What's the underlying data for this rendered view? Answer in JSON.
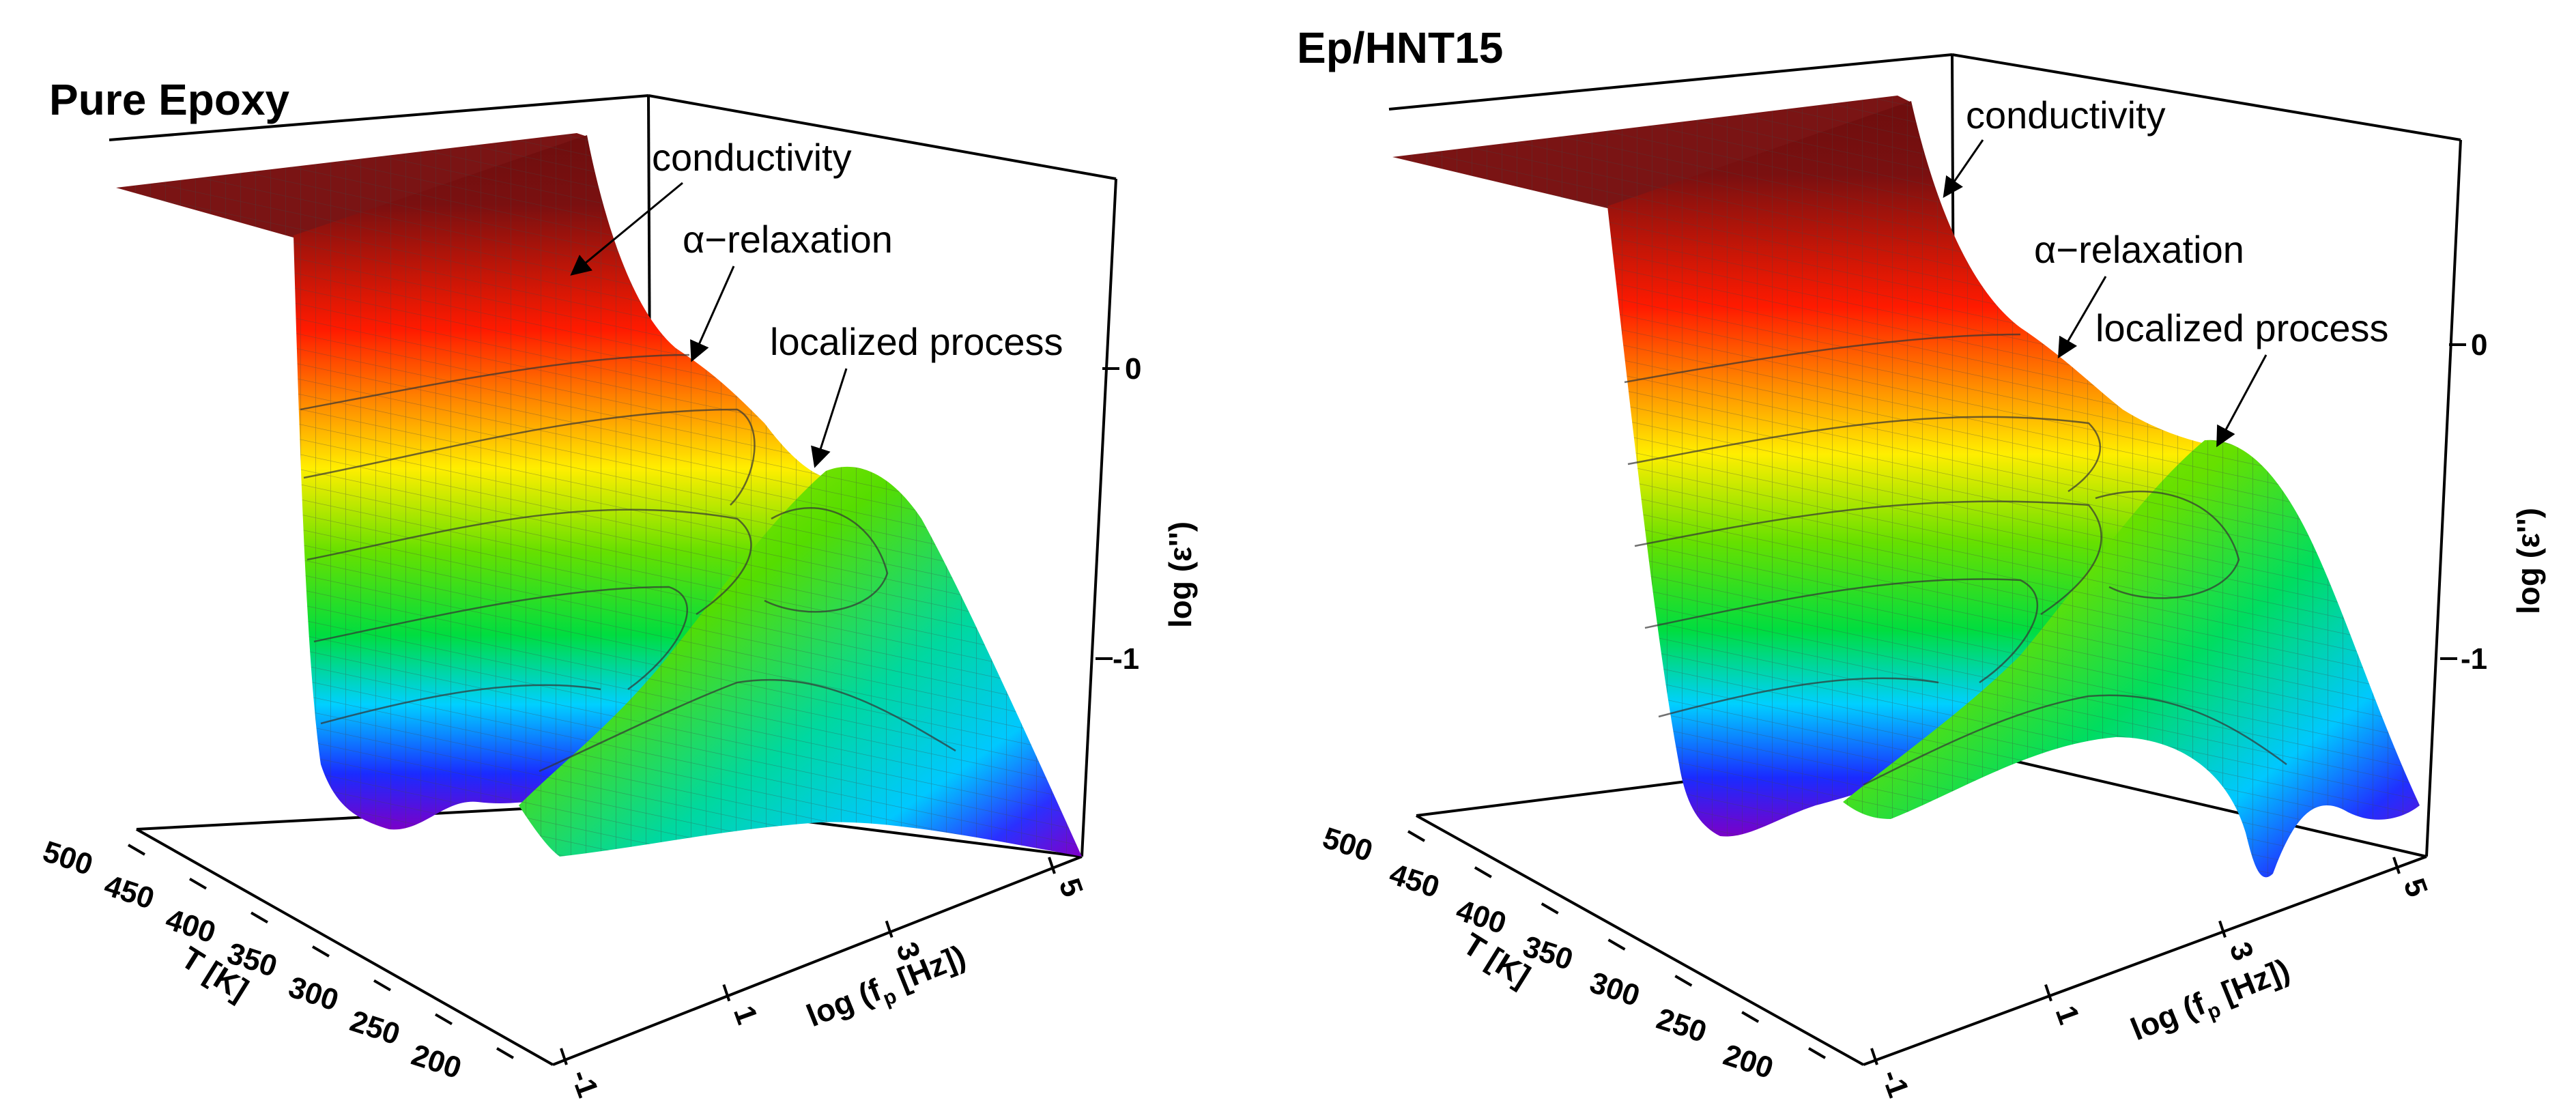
{
  "chart_data": [
    {
      "type": "surface3d",
      "title": "Pure Epoxy",
      "xlabel_prefix": "log (f",
      "xlabel_sub": "p",
      "xlabel_suffix": " [Hz])",
      "ylabel": "T [K]",
      "zlabel": "log (ε'')",
      "x_ticks": [
        "-1",
        "1",
        "3",
        "5"
      ],
      "y_ticks": [
        "200",
        "250",
        "300",
        "350",
        "400",
        "450",
        "500"
      ],
      "z_ticks": [
        "0",
        "-1"
      ],
      "annotations": [
        "conductivity",
        "α−relaxation",
        "localized process"
      ]
    },
    {
      "type": "surface3d",
      "title": "Ep/HNT15",
      "xlabel_prefix": "log (f",
      "xlabel_sub": "p",
      "xlabel_suffix": " [Hz])",
      "ylabel": "T [K]",
      "zlabel": "log (ε'')",
      "x_ticks": [
        "-1",
        "1",
        "3",
        "5"
      ],
      "y_ticks": [
        "200",
        "250",
        "300",
        "350",
        "400",
        "450",
        "500"
      ],
      "z_ticks": [
        "0",
        "-1"
      ],
      "annotations": [
        "conductivity",
        "α−relaxation",
        "localized process"
      ]
    }
  ],
  "colors": {
    "high": "#7a1010",
    "red": "#ff1a00",
    "orange": "#ff9900",
    "yellow": "#ffee00",
    "green": "#33dd00",
    "cyan": "#00d0ff",
    "blue": "#1a2bff",
    "violet": "#7a00c8"
  }
}
